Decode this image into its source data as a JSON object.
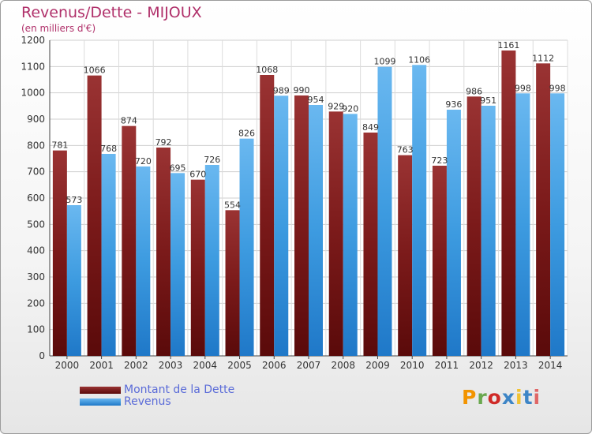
{
  "header": {
    "title": "Revenus/Dette - MIJOUX",
    "subtitle": "(en milliers d'€)"
  },
  "brand": {
    "text": "Proxiti",
    "colors": [
      "#f29400",
      "#6aa84f",
      "#cf2a27",
      "#3d85c6",
      "#f1c232",
      "#3d85c6",
      "#e06666"
    ]
  },
  "chart_data": {
    "type": "bar",
    "title": "Revenus/Dette - MIJOUX",
    "subtitle": "(en milliers d'€)",
    "xlabel": "",
    "ylabel": "",
    "ylim": [
      0,
      1200
    ],
    "yticks": [
      0,
      100,
      200,
      300,
      400,
      500,
      600,
      700,
      800,
      900,
      1000,
      1100,
      1200
    ],
    "grid": true,
    "categories": [
      "2000",
      "2001",
      "2002",
      "2003",
      "2004",
      "2005",
      "2006",
      "2007",
      "2008",
      "2009",
      "2010",
      "2011",
      "2012",
      "2013",
      "2014"
    ],
    "series": [
      {
        "name": "Montant de la Dette",
        "color": "#7b1a1a",
        "values": [
          781,
          1066,
          874,
          792,
          670,
          554,
          1068,
          990,
          929,
          849,
          763,
          723,
          986,
          1161,
          1112
        ]
      },
      {
        "name": "Revenus",
        "color": "#3d9be0",
        "values": [
          573,
          768,
          720,
          695,
          726,
          826,
          989,
          954,
          920,
          1099,
          1106,
          936,
          951,
          998,
          998
        ]
      }
    ],
    "legend_position": "bottom-left"
  }
}
